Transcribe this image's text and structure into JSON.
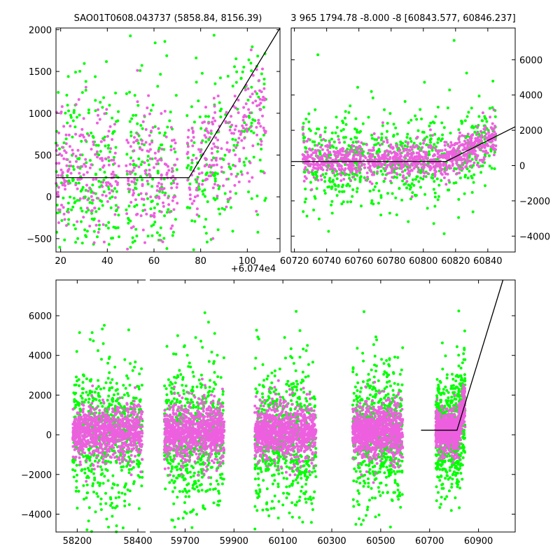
{
  "colors": {
    "green": "#00ff00",
    "magenta": "#ee5fe0",
    "fit": "#000000",
    "axis": "#000000",
    "background": "#ffffff"
  },
  "chart_data": [
    {
      "id": "top_left",
      "type": "scatter",
      "title": "SAO01T0608.043737 (5858.84, 8156.39)",
      "xlim": [
        18,
        114
      ],
      "ylim": [
        -660,
        2020
      ],
      "xticks": [
        20,
        40,
        60,
        80,
        100
      ],
      "yticks": [
        -500,
        0,
        500,
        1000,
        1500,
        2000
      ],
      "xtick_labels": [
        "20",
        "40",
        "60",
        "80",
        "100"
      ],
      "ytick_labels": [
        "−500",
        "0",
        "500",
        "1000",
        "1500",
        "2000"
      ],
      "x_offset_label": "+6.074e4",
      "grid": false,
      "series": [
        {
          "name": "green",
          "color": "#00ff00",
          "x_groups": [
            [
              18,
              45,
              220
            ],
            [
              48,
              70,
              160
            ],
            [
              74,
              108,
              200
            ]
          ],
          "y_center": 250,
          "y_spread": 650
        },
        {
          "name": "magenta",
          "color": "#ee5fe0",
          "x_groups": [
            [
              18,
              45,
              180
            ],
            [
              48,
              70,
              150
            ],
            [
              74,
              108,
              200
            ]
          ],
          "y_center": 300,
          "y_spread": 420
        }
      ],
      "fit_line": {
        "x": [
          18,
          75,
          114
        ],
        "y": [
          230,
          230,
          2020
        ]
      }
    },
    {
      "id": "top_right",
      "type": "scatter",
      "title": "3 965 1794.78 -8.000 -8 [60843.577, 60846.237]",
      "xlim": [
        60718,
        60857
      ],
      "ylim": [
        -4900,
        7800
      ],
      "xticks": [
        60720,
        60740,
        60760,
        60780,
        60800,
        60820,
        60840
      ],
      "yticks": [
        -4000,
        -2000,
        0,
        2000,
        4000,
        6000
      ],
      "xtick_labels": [
        "60720",
        "60740",
        "60760",
        "60780",
        "60800",
        "60820",
        "60840"
      ],
      "ytick_labels": [
        "−4000",
        "−2000",
        "0",
        "2000",
        "4000",
        "6000"
      ],
      "grid": false,
      "series": [
        {
          "name": "green",
          "color": "#00ff00",
          "x_groups": [
            [
              60725,
              60845,
              700
            ]
          ],
          "y_center": 200,
          "y_spread": 1800
        },
        {
          "name": "magenta",
          "color": "#ee5fe0",
          "x_groups": [
            [
              60725,
              60845,
              900
            ]
          ],
          "y_center": 300,
          "y_spread": 700
        }
      ],
      "fit_line": {
        "x": [
          60718,
          60814,
          60857
        ],
        "y": [
          230,
          230,
          2200
        ]
      }
    },
    {
      "id": "bottom",
      "type": "scatter",
      "title": "",
      "broken_axis": true,
      "segments": [
        {
          "xlim": [
            58130,
            58430
          ],
          "xticks": [
            58200,
            58400
          ],
          "xtick_labels": [
            "58200",
            "58400"
          ]
        },
        {
          "xlim": [
            59550,
            61050
          ],
          "xticks": [
            59700,
            59900,
            60100,
            60300,
            60500,
            60700,
            60900
          ],
          "xtick_labels": [
            "59700",
            "59900",
            "60100",
            "60300",
            "60500",
            "60700",
            "60900"
          ]
        }
      ],
      "ylim": [
        -4900,
        7800
      ],
      "yticks": [
        -4000,
        -2000,
        0,
        2000,
        4000,
        6000
      ],
      "ytick_labels": [
        "−4000",
        "−2000",
        "0",
        "2000",
        "4000",
        "6000"
      ],
      "grid": false,
      "clusters": [
        {
          "segment": 0,
          "x_range": [
            58185,
            58415
          ],
          "y_spread_green": 2200,
          "y_spread_magenta": 900
        },
        {
          "segment": 1,
          "x_range": [
            59615,
            59860
          ],
          "y_spread_green": 2200,
          "y_spread_magenta": 950
        },
        {
          "segment": 1,
          "x_range": [
            59985,
            60235
          ],
          "y_spread_green": 2300,
          "y_spread_magenta": 950
        },
        {
          "segment": 1,
          "x_range": [
            60385,
            60590
          ],
          "y_spread_green": 2200,
          "y_spread_magenta": 950
        },
        {
          "segment": 1,
          "x_range": [
            60725,
            60845
          ],
          "y_spread_green": 1800,
          "y_spread_magenta": 700
        }
      ],
      "fit_line": {
        "segment": 1,
        "x": [
          60665,
          60812,
          61000
        ],
        "y": [
          230,
          230,
          7800
        ]
      }
    }
  ]
}
